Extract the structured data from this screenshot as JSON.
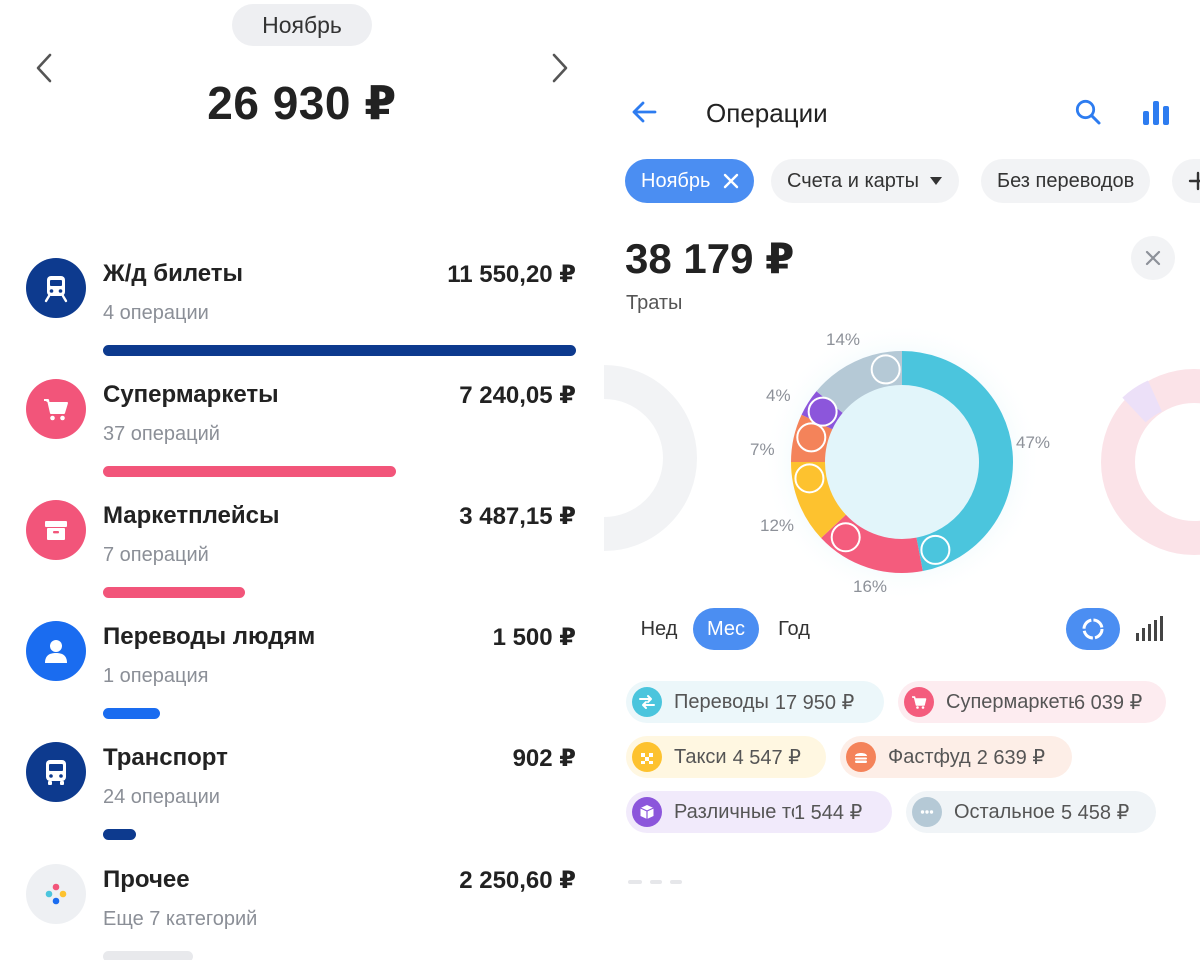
{
  "left": {
    "month": "Ноябрь",
    "total": "26 930 ₽",
    "categories": [
      {
        "name": "Ж/д билеты",
        "amount": "11 550,20 ₽",
        "sub": "4 операции",
        "icon": "train-icon",
        "color": "#0d3a8e",
        "bar_fraction": 1.0
      },
      {
        "name": "Супермаркеты",
        "amount": "7 240,05 ₽",
        "sub": "37 операций",
        "icon": "cart-icon",
        "color": "#f2557a",
        "bar_fraction": 0.62
      },
      {
        "name": "Маркетплейсы",
        "amount": "3 487,15 ₽",
        "sub": "7 операций",
        "icon": "box-icon",
        "color": "#f2557a",
        "bar_fraction": 0.3
      },
      {
        "name": "Переводы людям",
        "amount": "1 500 ₽",
        "sub": "1 операция",
        "icon": "person-icon",
        "color": "#1a6cf0",
        "bar_fraction": 0.12
      },
      {
        "name": "Транспорт",
        "amount": "902 ₽",
        "sub": "24 операции",
        "icon": "bus-icon",
        "color": "#0d3a8e",
        "bar_fraction": 0.07
      },
      {
        "name": "Прочее",
        "amount": "2 250,60 ₽",
        "sub": "Еще 7 категорий",
        "icon": "dots-multicolor-icon",
        "color": "#e8e9ec",
        "bar_fraction": 0.19
      }
    ]
  },
  "right": {
    "title": "Операции",
    "chips": {
      "month": "Ноябрь",
      "accounts": "Счета и карты",
      "transfers": "Без переводов"
    },
    "spent": "38 179 ₽",
    "spent_label": "Траты",
    "donut": {
      "segments": [
        {
          "name": "Переводы",
          "percent": 47,
          "color": "#4bc5dd"
        },
        {
          "name": "Супермаркеты",
          "percent": 16,
          "color": "#f45c7d"
        },
        {
          "name": "Такси",
          "percent": 12,
          "color": "#fdc22f"
        },
        {
          "name": "Фастфуд",
          "percent": 7,
          "color": "#f4835a"
        },
        {
          "name": "Различные товары",
          "percent": 4,
          "color": "#8c56db"
        },
        {
          "name": "Остальное",
          "percent": 14,
          "color": "#b5c9d6"
        }
      ],
      "labels": {
        "p47": "47%",
        "p16": "16%",
        "p12": "12%",
        "p7": "7%",
        "p4": "4%",
        "p14": "14%"
      }
    },
    "periods": {
      "week": "Нед",
      "month": "Мес",
      "year": "Год"
    },
    "tags": [
      {
        "label": "Переводы",
        "value": "17 950 ₽",
        "color": "#4bc5dd",
        "bg": "#ecf7fa"
      },
      {
        "label": "Супермаркеты",
        "value": "6 039 ₽",
        "color": "#f45c7d",
        "bg": "#fdecf0"
      },
      {
        "label": "Такси",
        "value": "4 547 ₽",
        "color": "#fdc22f",
        "bg": "#fff7e1"
      },
      {
        "label": "Фастфуд",
        "value": "2 639 ₽",
        "color": "#f4835a",
        "bg": "#fdeee7"
      },
      {
        "label": "Различные товары",
        "value": "1 544 ₽",
        "color": "#8c56db",
        "bg": "#f1eafb"
      },
      {
        "label": "Остальное",
        "value": "5 458 ₽",
        "color": "#b5c9d6",
        "bg": "#f0f4f7"
      }
    ]
  }
}
